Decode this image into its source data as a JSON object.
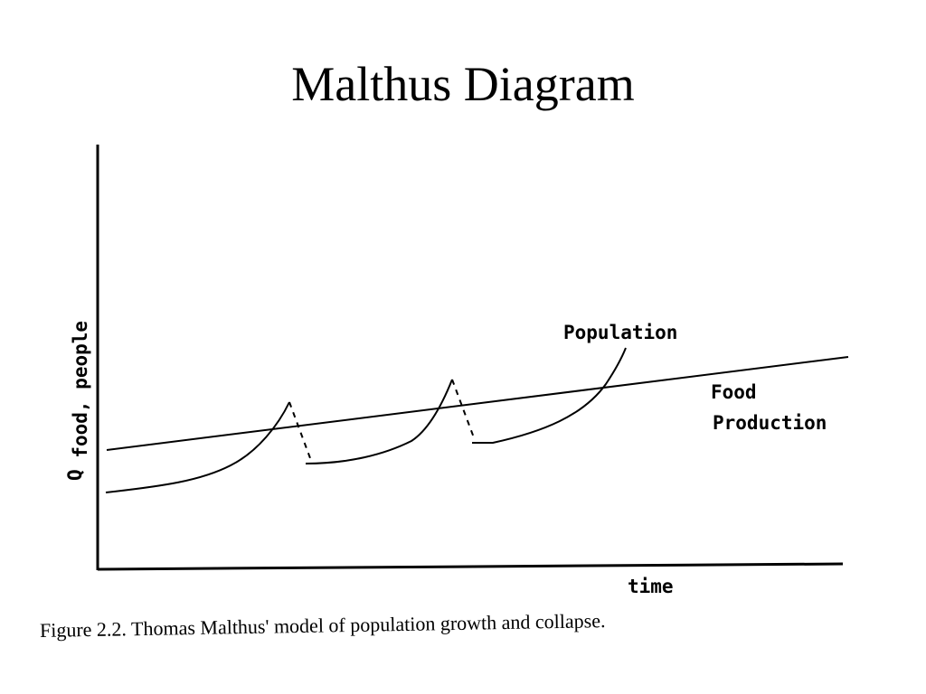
{
  "slide": {
    "title": "Malthus Diagram"
  },
  "diagram": {
    "y_axis_label": "Q",
    "y_axis_label_subscript": "food, people",
    "x_axis_label": "time",
    "population_label": "Population",
    "food_label_line1": "Food",
    "food_label_line2": "Production",
    "line_color": "#000000"
  },
  "caption": "Figure 2.2. Thomas Malthus' model of population growth and collapse."
}
